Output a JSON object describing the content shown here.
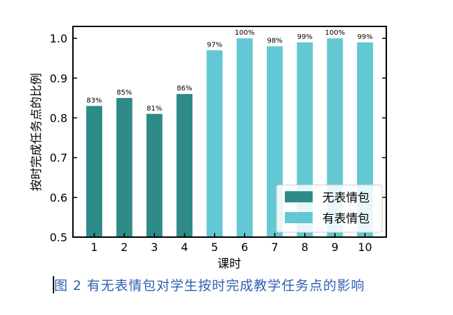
{
  "chart_data": {
    "type": "bar",
    "categories": [
      "1",
      "2",
      "3",
      "4",
      "5",
      "6",
      "7",
      "8",
      "9",
      "10"
    ],
    "values": [
      0.83,
      0.85,
      0.81,
      0.86,
      0.97,
      1.0,
      0.98,
      0.99,
      1.0,
      0.99
    ],
    "data_labels": [
      "83%",
      "85%",
      "81%",
      "86%",
      "97%",
      "100%",
      "98%",
      "99%",
      "100%",
      "99%"
    ],
    "groups": [
      "无表情包",
      "无表情包",
      "无表情包",
      "无表情包",
      "有表情包",
      "有表情包",
      "有表情包",
      "有表情包",
      "有表情包",
      "有表情包"
    ],
    "series": [
      {
        "name": "无表情包",
        "color": "#2e8b87"
      },
      {
        "name": "有表情包",
        "color": "#63c8d3"
      }
    ],
    "xlabel": "课时",
    "ylabel": "按时完成任务点的比例",
    "ylim": [
      0.5,
      1.03
    ],
    "yticks": [
      "0.5",
      "0.6",
      "0.7",
      "0.8",
      "0.9",
      "1.0"
    ],
    "legend_position": "bottom-right",
    "grid": false
  },
  "caption": "图 2 有无表情包对学生按时完成教学任务点的影响"
}
